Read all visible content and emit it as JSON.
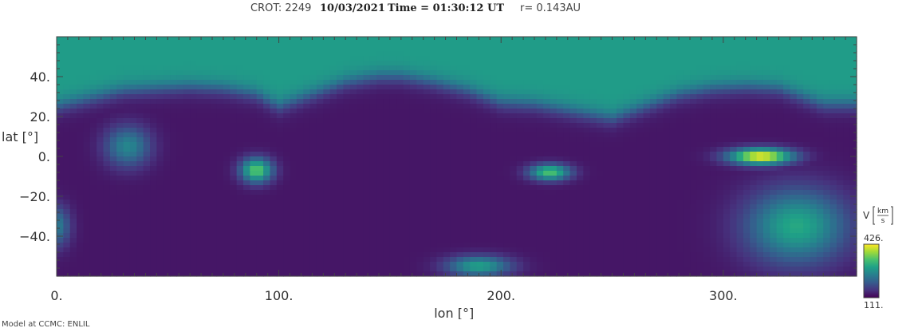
{
  "header": {
    "crot_label": "CROT: 2249",
    "date": "10/03/2021",
    "time_label": "Time = 01:30:12 UT",
    "radius_label": "r= 0.143AU"
  },
  "footer": "Model at CCMC: ENLIL",
  "colors": {
    "viridis": [
      "#440154",
      "#46337e",
      "#365c8d",
      "#277f8e",
      "#1fa187",
      "#4ac16d",
      "#a0da39",
      "#fde725"
    ],
    "low": "#45307a",
    "high": "#7cc955"
  },
  "chart_data": {
    "type": "heatmap",
    "xlabel": "lon [°]",
    "ylabel": "lat [°]",
    "xlim": [
      0,
      360
    ],
    "ylim": [
      -60,
      60
    ],
    "x_ticks": [
      0,
      100,
      200,
      300
    ],
    "x_tick_labels": [
      "0.",
      "100.",
      "200.",
      "300."
    ],
    "y_ticks": [
      40,
      20,
      0,
      -20,
      -40
    ],
    "y_tick_labels": [
      "40.",
      "20.",
      "0.",
      "−20.",
      "−40."
    ],
    "colorbar": {
      "label": "V [km/s]",
      "label_prefix": "V",
      "unit_num": "km",
      "unit_den": "s",
      "min": 111,
      "max": 426,
      "min_label": "111.",
      "max_label": "426."
    },
    "current_sheet_boundary": {
      "lon": [
        0,
        15,
        30,
        45,
        60,
        75,
        90,
        100,
        115,
        130,
        145,
        155,
        170,
        185,
        200,
        215,
        230,
        245,
        250,
        265,
        280,
        295,
        310,
        325,
        340,
        345,
        360
      ],
      "lat": [
        25,
        29,
        33,
        34,
        35,
        34,
        31,
        25,
        31,
        37,
        40,
        40,
        37,
        33,
        27,
        26,
        23,
        20,
        19,
        25,
        31,
        34,
        35,
        34,
        28,
        26,
        26
      ]
    },
    "enhancements": [
      {
        "lon": 317,
        "lat": 0,
        "peak": 426
      },
      {
        "lon": 333,
        "lat": -35,
        "peak": 300
      },
      {
        "lon": 90,
        "lat": -7,
        "peak": 345
      },
      {
        "lon": 222,
        "lat": -8,
        "peak": 335
      },
      {
        "lon": 32,
        "lat": 5,
        "peak": 255
      },
      {
        "lon": 190,
        "lat": -55,
        "peak": 290
      },
      {
        "lon": 0,
        "lat": -35,
        "peak": 240
      }
    ]
  }
}
